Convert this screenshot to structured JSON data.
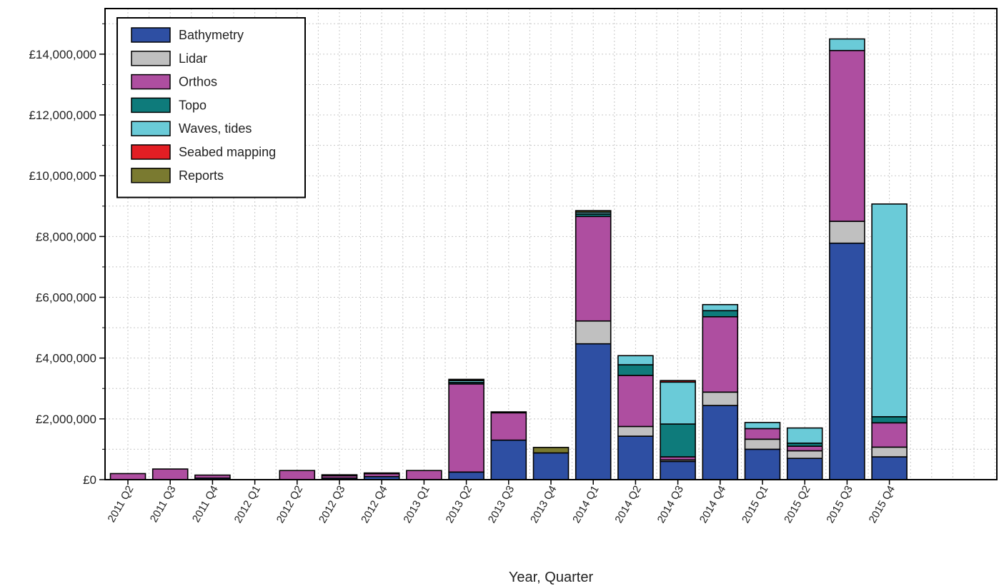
{
  "chart_data": {
    "type": "bar",
    "stacked": true,
    "xlabel": "Year, Quarter",
    "ylabel": "",
    "ylim": [
      0,
      15500000
    ],
    "yticks": [
      0,
      2000000,
      4000000,
      6000000,
      8000000,
      10000000,
      12000000,
      14000000
    ],
    "ytick_labels": [
      "£0",
      "£2,000,000",
      "£4,000,000",
      "£6,000,000",
      "£8,000,000",
      "£10,000,000",
      "£12,000,000",
      "£14,000,000"
    ],
    "grid": true,
    "legend_position": "top-left",
    "categories": [
      "2011 Q2",
      "2011 Q3",
      "2011 Q4",
      "2012 Q1",
      "2012 Q2",
      "2012 Q3",
      "2012 Q4",
      "2013 Q1",
      "2013 Q2",
      "2013 Q3",
      "2013 Q4",
      "2014 Q1",
      "2014 Q2",
      "2014 Q3",
      "2014 Q4",
      "2015 Q1",
      "2015 Q2",
      "2015 Q3",
      "2015 Q4"
    ],
    "series": [
      {
        "name": "Bathymetry",
        "color": "#2e4fa3",
        "values": [
          0,
          0,
          50000,
          0,
          0,
          50000,
          100000,
          0,
          250000,
          1300000,
          880000,
          4470000,
          1430000,
          600000,
          2440000,
          1000000,
          700000,
          7780000,
          750000
        ]
      },
      {
        "name": "Lidar",
        "color": "#c0c0c0",
        "values": [
          0,
          0,
          0,
          0,
          0,
          0,
          0,
          0,
          0,
          0,
          0,
          750000,
          320000,
          50000,
          440000,
          330000,
          250000,
          720000,
          320000
        ]
      },
      {
        "name": "Orthos",
        "color": "#ae4ea0",
        "values": [
          200000,
          350000,
          100000,
          0,
          300000,
          80000,
          100000,
          300000,
          2900000,
          900000,
          0,
          3440000,
          1680000,
          100000,
          2480000,
          350000,
          150000,
          5620000,
          800000
        ]
      },
      {
        "name": "Topo",
        "color": "#0e7b7b",
        "values": [
          0,
          0,
          0,
          0,
          0,
          0,
          0,
          0,
          50000,
          0,
          0,
          80000,
          350000,
          1080000,
          200000,
          0,
          100000,
          0,
          200000
        ]
      },
      {
        "name": "Waves, tides",
        "color": "#6acbd8",
        "values": [
          0,
          0,
          0,
          0,
          0,
          0,
          0,
          0,
          60000,
          0,
          0,
          60000,
          300000,
          1380000,
          200000,
          200000,
          500000,
          380000,
          7000000
        ]
      },
      {
        "name": "Seabed mapping",
        "color": "#e31e24",
        "values": [
          0,
          0,
          0,
          0,
          0,
          0,
          0,
          0,
          0,
          0,
          0,
          0,
          0,
          50000,
          0,
          0,
          0,
          0,
          0
        ]
      },
      {
        "name": "Reports",
        "color": "#7a7a30",
        "values": [
          0,
          0,
          0,
          0,
          0,
          30000,
          20000,
          0,
          40000,
          30000,
          180000,
          50000,
          0,
          0,
          0,
          0,
          0,
          0,
          0
        ]
      }
    ]
  }
}
